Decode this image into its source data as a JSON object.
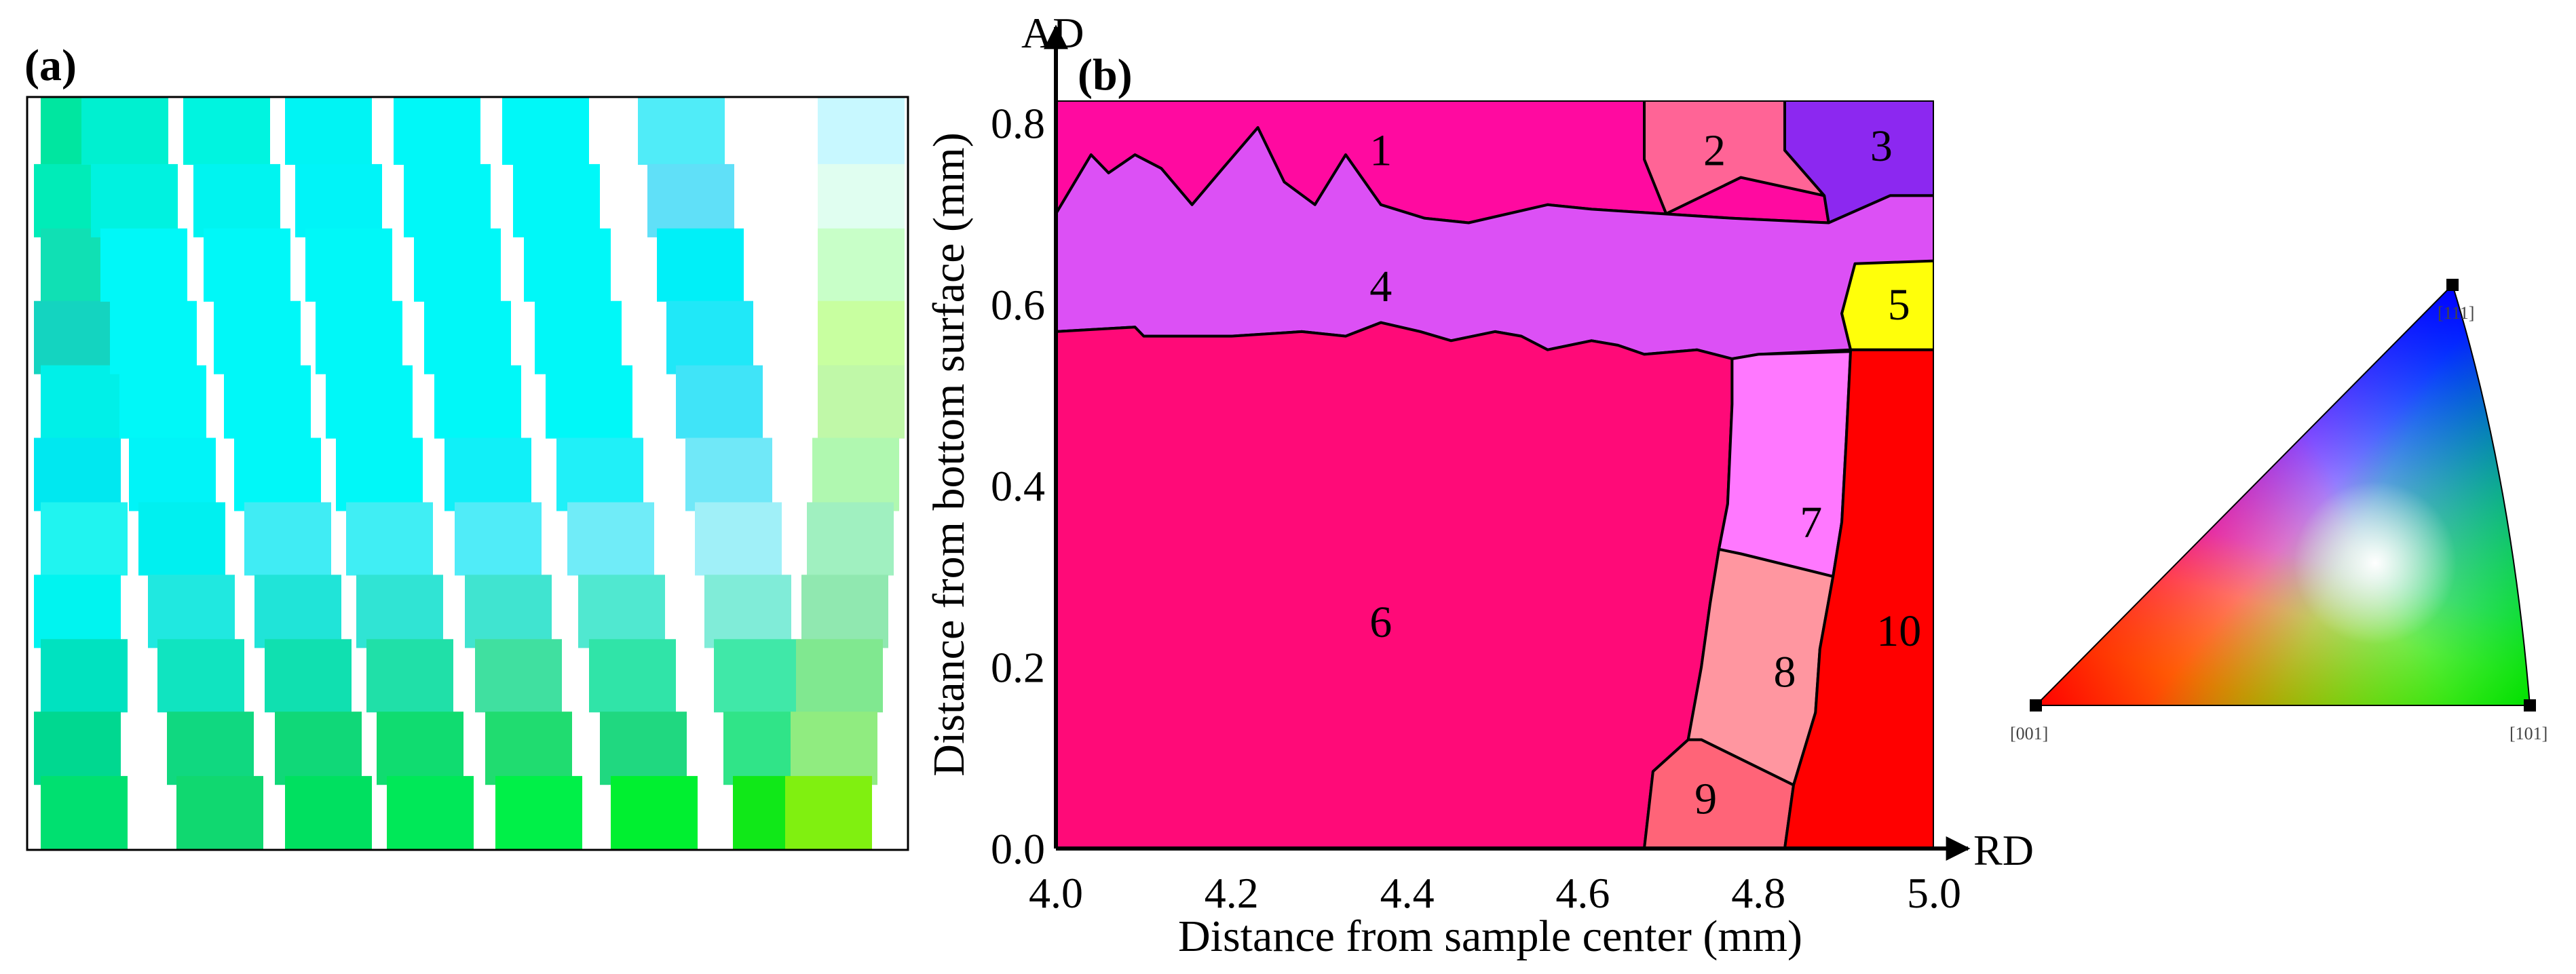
{
  "panel_a": {
    "label": "(a)",
    "cell_columns": [
      {
        "cells": [
          "#00e6a0",
          "#00ecb8",
          "#10e0b4",
          "#14d4c0",
          "#00f0e8",
          "#00e8f0",
          "#20f4f0",
          "#00f4f0",
          "#00e2c0",
          "#00d890",
          "#00e070"
        ]
      },
      {
        "cells": [
          "#00f0d0",
          "#00f2e0",
          "#00f8f8",
          "#00f8f8",
          "#00f8f8",
          "#00f4f8",
          "#00f0f0",
          "#20e8e0",
          "#10e4c0",
          "#10d880",
          "#10d870"
        ]
      },
      {
        "cells": [
          "#00f4e0",
          "#00f4f0",
          "#00f8f8",
          "#00f8f8",
          "#00f8f8",
          "#00f8f8",
          "#40ecf4",
          "#20e4d8",
          "#10e0b0",
          "#10d878",
          "#00e060"
        ]
      },
      {
        "cells": [
          "#00f4f4",
          "#00f4f8",
          "#00f8f8",
          "#00f8f8",
          "#00f8f8",
          "#00f8f8",
          "#40eef4",
          "#30e4d4",
          "#20e0a8",
          "#10dc70",
          "#00e858"
        ]
      },
      {
        "cells": [
          "#00f8f8",
          "#00f8f8",
          "#00f8f8",
          "#00f8f8",
          "#00f8f8",
          "#10f0f8",
          "#50ecf8",
          "#40e4d0",
          "#40e0a0",
          "#20dc70",
          "#00f048"
        ]
      },
      {
        "cells": [
          "#00f8f8",
          "#00f8f8",
          "#00f8f8",
          "#00f8f8",
          "#00f8f8",
          "#20f0f8",
          "#70ecf8",
          "#50e8d0",
          "#30e4a8",
          "#20d880",
          "#00f030"
        ]
      },
      {
        "cells": [
          "#50ecf8",
          "#60e0f8",
          "#00f0f8",
          "#20e8f8",
          "#40e4f8",
          "#70e8f8",
          "#a0f0f8",
          "#80ecd8",
          "#40e8a8",
          "#30e488",
          "#10e818"
        ]
      },
      {
        "cells": [
          "#c8f8ff",
          "#e0fef0",
          "#c8ffc8",
          "#c8ffa0",
          "#c0f8a8",
          "#b0f8b0",
          "#a0f0c0",
          "#90e8b0",
          "#80e890",
          "#90ec80",
          "#80f010"
        ]
      }
    ]
  },
  "panel_b": {
    "label": "(b)",
    "x_axis": {
      "title": "Distance from sample center (mm)",
      "direction": "RD",
      "range": [
        4.0,
        5.0
      ],
      "ticks": [
        "4.0",
        "4.2",
        "4.4",
        "4.6",
        "4.8",
        "5.0"
      ],
      "tick_values": [
        4.0,
        4.2,
        4.4,
        4.6,
        4.8,
        5.0
      ]
    },
    "y_axis": {
      "title": "Distance from bottom surface (mm)",
      "direction": "AD",
      "range": [
        0.0,
        0.825
      ],
      "ticks": [
        "0.0",
        "0.2",
        "0.4",
        "0.6",
        "0.8"
      ],
      "tick_values": [
        0.0,
        0.2,
        0.4,
        0.6,
        0.8
      ]
    },
    "grains": [
      {
        "id": "1",
        "color": "#ff0aa0",
        "label_at": [
          4.37,
          0.77
        ],
        "boundary": [
          [
            4.0,
            0.825
          ],
          [
            4.67,
            0.825
          ],
          [
            4.67,
            0.76
          ],
          [
            4.695,
            0.7
          ],
          [
            4.78,
            0.74
          ],
          [
            4.875,
            0.72
          ],
          [
            4.88,
            0.69
          ],
          [
            4.77,
            0.695
          ],
          [
            4.61,
            0.705
          ],
          [
            4.56,
            0.71
          ],
          [
            4.47,
            0.69
          ],
          [
            4.42,
            0.695
          ],
          [
            4.37,
            0.71
          ],
          [
            4.33,
            0.765
          ],
          [
            4.295,
            0.71
          ],
          [
            4.26,
            0.735
          ],
          [
            4.23,
            0.795
          ],
          [
            4.19,
            0.75
          ],
          [
            4.155,
            0.71
          ],
          [
            4.12,
            0.75
          ],
          [
            4.09,
            0.765
          ],
          [
            4.06,
            0.745
          ],
          [
            4.04,
            0.765
          ],
          [
            4.0,
            0.7
          ]
        ]
      },
      {
        "id": "2",
        "color": "#ff6496",
        "label_at": [
          4.75,
          0.77
        ],
        "boundary": [
          [
            4.67,
            0.825
          ],
          [
            4.83,
            0.825
          ],
          [
            4.83,
            0.77
          ],
          [
            4.875,
            0.72
          ],
          [
            4.78,
            0.74
          ],
          [
            4.695,
            0.7
          ],
          [
            4.67,
            0.76
          ]
        ]
      },
      {
        "id": "3",
        "color": "#8c28f0",
        "label_at": [
          4.94,
          0.775
        ],
        "boundary": [
          [
            4.83,
            0.825
          ],
          [
            5.0,
            0.825
          ],
          [
            5.0,
            0.72
          ],
          [
            4.95,
            0.72
          ],
          [
            4.88,
            0.69
          ],
          [
            4.875,
            0.72
          ],
          [
            4.83,
            0.77
          ]
        ]
      },
      {
        "id": "4",
        "color": "#dc50f5",
        "label_at": [
          4.37,
          0.62
        ],
        "boundary": [
          [
            4.0,
            0.7
          ],
          [
            4.04,
            0.765
          ],
          [
            4.06,
            0.745
          ],
          [
            4.09,
            0.765
          ],
          [
            4.12,
            0.75
          ],
          [
            4.155,
            0.71
          ],
          [
            4.19,
            0.75
          ],
          [
            4.23,
            0.795
          ],
          [
            4.26,
            0.735
          ],
          [
            4.295,
            0.71
          ],
          [
            4.33,
            0.765
          ],
          [
            4.37,
            0.71
          ],
          [
            4.42,
            0.695
          ],
          [
            4.47,
            0.69
          ],
          [
            4.56,
            0.71
          ],
          [
            4.61,
            0.705
          ],
          [
            4.77,
            0.695
          ],
          [
            4.88,
            0.69
          ],
          [
            4.95,
            0.72
          ],
          [
            5.0,
            0.72
          ],
          [
            5.0,
            0.645
          ],
          [
            4.91,
            0.64
          ],
          [
            4.895,
            0.59
          ],
          [
            4.905,
            0.55
          ],
          [
            4.8,
            0.545
          ],
          [
            4.77,
            0.54
          ],
          [
            4.73,
            0.55
          ],
          [
            4.67,
            0.545
          ],
          [
            4.64,
            0.555
          ],
          [
            4.61,
            0.56
          ],
          [
            4.56,
            0.55
          ],
          [
            4.53,
            0.565
          ],
          [
            4.5,
            0.57
          ],
          [
            4.45,
            0.56
          ],
          [
            4.415,
            0.57
          ],
          [
            4.37,
            0.58
          ],
          [
            4.33,
            0.565
          ],
          [
            4.28,
            0.57
          ],
          [
            4.2,
            0.565
          ],
          [
            4.1,
            0.565
          ],
          [
            4.09,
            0.575
          ],
          [
            4.0,
            0.57
          ]
        ]
      },
      {
        "id": "5",
        "color": "#ffff0a",
        "label_at": [
          4.96,
          0.6
        ],
        "boundary": [
          [
            4.91,
            0.645
          ],
          [
            5.0,
            0.648
          ],
          [
            5.0,
            0.55
          ],
          [
            4.905,
            0.55
          ],
          [
            4.895,
            0.59
          ]
        ]
      },
      {
        "id": "6",
        "color": "#ff0a78",
        "label_at": [
          4.37,
          0.25
        ],
        "boundary": [
          [
            4.0,
            0.57
          ],
          [
            4.09,
            0.575
          ],
          [
            4.1,
            0.565
          ],
          [
            4.2,
            0.565
          ],
          [
            4.28,
            0.57
          ],
          [
            4.33,
            0.565
          ],
          [
            4.37,
            0.58
          ],
          [
            4.415,
            0.57
          ],
          [
            4.45,
            0.56
          ],
          [
            4.5,
            0.57
          ],
          [
            4.53,
            0.565
          ],
          [
            4.56,
            0.55
          ],
          [
            4.61,
            0.56
          ],
          [
            4.64,
            0.555
          ],
          [
            4.67,
            0.545
          ],
          [
            4.73,
            0.55
          ],
          [
            4.77,
            0.54
          ],
          [
            4.77,
            0.49
          ],
          [
            4.765,
            0.38
          ],
          [
            4.755,
            0.33
          ],
          [
            4.745,
            0.27
          ],
          [
            4.735,
            0.2
          ],
          [
            4.72,
            0.12
          ],
          [
            4.68,
            0.085
          ],
          [
            4.67,
            0.0
          ],
          [
            4.0,
            0.0
          ]
        ]
      },
      {
        "id": "7",
        "color": "#ff78ff",
        "label_at": [
          4.86,
          0.36
        ],
        "boundary": [
          [
            4.77,
            0.54
          ],
          [
            4.8,
            0.545
          ],
          [
            4.905,
            0.548
          ],
          [
            4.9,
            0.45
          ],
          [
            4.895,
            0.36
          ],
          [
            4.885,
            0.3
          ],
          [
            4.78,
            0.325
          ],
          [
            4.755,
            0.33
          ],
          [
            4.765,
            0.38
          ],
          [
            4.77,
            0.49
          ]
        ]
      },
      {
        "id": "8",
        "color": "#ff96a0",
        "label_at": [
          4.83,
          0.195
        ],
        "boundary": [
          [
            4.78,
            0.325
          ],
          [
            4.885,
            0.3
          ],
          [
            4.87,
            0.22
          ],
          [
            4.865,
            0.15
          ],
          [
            4.84,
            0.07
          ],
          [
            4.735,
            0.12
          ],
          [
            4.72,
            0.12
          ],
          [
            4.735,
            0.2
          ],
          [
            4.745,
            0.27
          ],
          [
            4.755,
            0.33
          ]
        ]
      },
      {
        "id": "9",
        "color": "#ff6478",
        "label_at": [
          4.74,
          0.055
        ],
        "boundary": [
          [
            4.72,
            0.12
          ],
          [
            4.735,
            0.12
          ],
          [
            4.84,
            0.07
          ],
          [
            4.83,
            0.0
          ],
          [
            4.67,
            0.0
          ],
          [
            4.68,
            0.085
          ]
        ]
      },
      {
        "id": "10",
        "color": "#ff0000",
        "label_at": [
          4.96,
          0.24
        ],
        "boundary": [
          [
            4.905,
            0.55
          ],
          [
            5.0,
            0.55
          ],
          [
            5.0,
            0.0
          ],
          [
            4.83,
            0.0
          ],
          [
            4.84,
            0.07
          ],
          [
            4.865,
            0.15
          ],
          [
            4.87,
            0.22
          ],
          [
            4.885,
            0.3
          ],
          [
            4.895,
            0.36
          ],
          [
            4.9,
            0.45
          ]
        ]
      }
    ]
  },
  "ipf_key": {
    "corner_001": "[001]",
    "corner_101": "[101]",
    "corner_111": "[111]",
    "colors": {
      "001": "#ff0000",
      "101": "#00e000",
      "111": "#0000ff",
      "center": "#ffffff"
    }
  }
}
